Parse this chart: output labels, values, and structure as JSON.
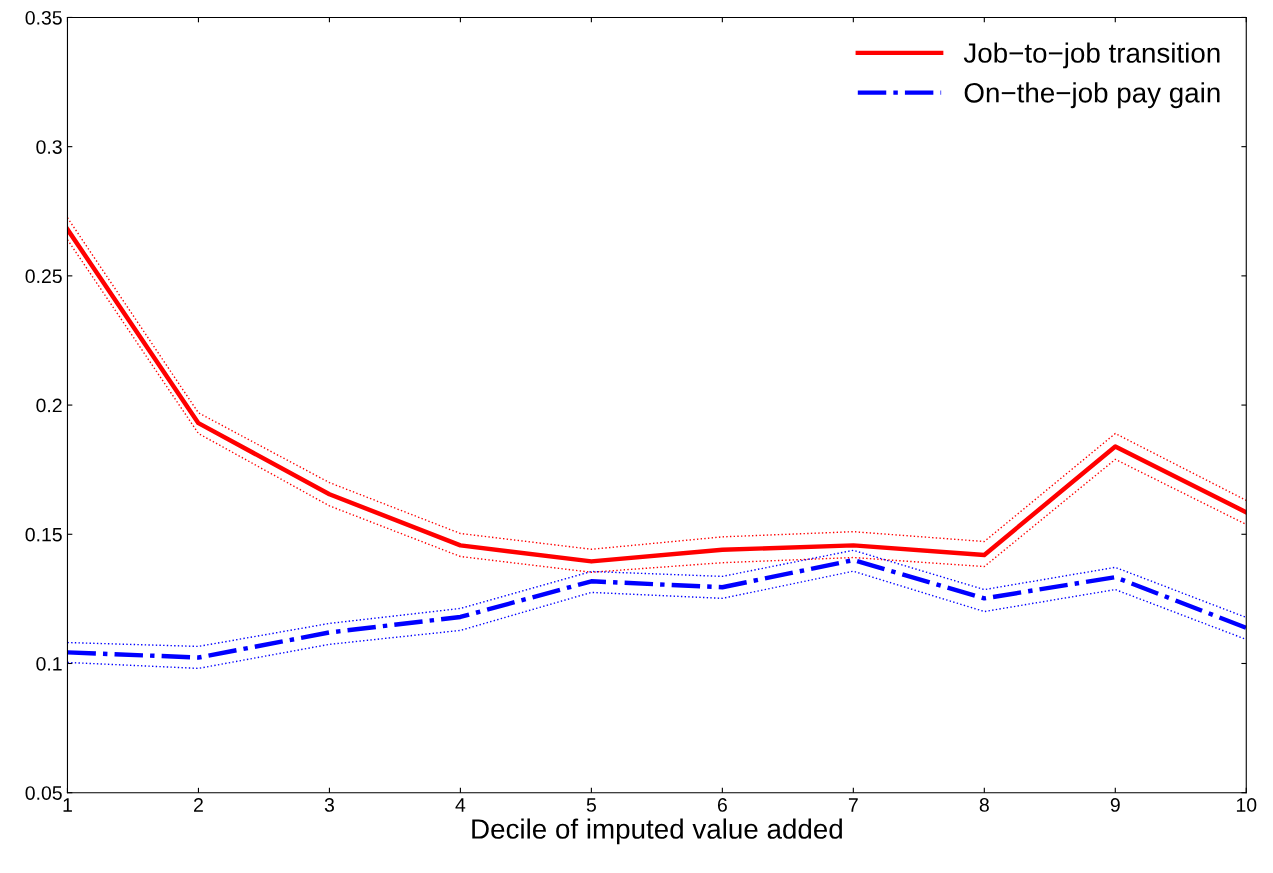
{
  "chart_data": {
    "type": "line",
    "xlabel": "Decile of imputed value added",
    "x": [
      1,
      2,
      3,
      4,
      5,
      6,
      7,
      8,
      9,
      10
    ],
    "series": [
      {
        "name": "Job−to−job transition",
        "color": "#ff0000",
        "line_style": "solid",
        "values": [
          0.268,
          0.193,
          0.1655,
          0.1457,
          0.1395,
          0.144,
          0.1457,
          0.142,
          0.184,
          0.1585
        ]
      },
      {
        "name": "On−the−job pay gain",
        "color": "#0000ff",
        "line_style": "dashdot",
        "values": [
          0.1043,
          0.1023,
          0.112,
          0.118,
          0.1318,
          0.1295,
          0.14,
          0.1252,
          0.1334,
          0.1138
        ]
      },
      {
        "color": "#ff0000",
        "line_style": "dotted",
        "values": [
          0.264,
          0.189,
          0.161,
          0.1414,
          0.1353,
          0.139,
          0.141,
          0.1375,
          0.179,
          0.1538
        ]
      },
      {
        "color": "#ff0000",
        "line_style": "dotted",
        "values": [
          0.2725,
          0.197,
          0.17,
          0.1503,
          0.1442,
          0.149,
          0.151,
          0.1472,
          0.189,
          0.1631
        ]
      },
      {
        "color": "#0000ff",
        "line_style": "dotted",
        "values": [
          0.1004,
          0.0981,
          0.1074,
          0.1128,
          0.1275,
          0.1252,
          0.1357,
          0.1201,
          0.1286,
          0.1093
        ]
      },
      {
        "color": "#0000ff",
        "line_style": "dotted",
        "values": [
          0.1081,
          0.1066,
          0.1155,
          0.1213,
          0.1356,
          0.1337,
          0.1438,
          0.1286,
          0.1372,
          0.1178
        ]
      }
    ],
    "xlim": [
      1,
      10
    ],
    "xticks": [
      1,
      2,
      3,
      4,
      5,
      6,
      7,
      8,
      9,
      10
    ],
    "ylim": [
      0.05,
      0.35
    ],
    "yticks": [
      0.05,
      0.1,
      0.15,
      0.2,
      0.25,
      0.3,
      0.35
    ],
    "grid": false,
    "legend": "top right",
    "marker": "none"
  }
}
